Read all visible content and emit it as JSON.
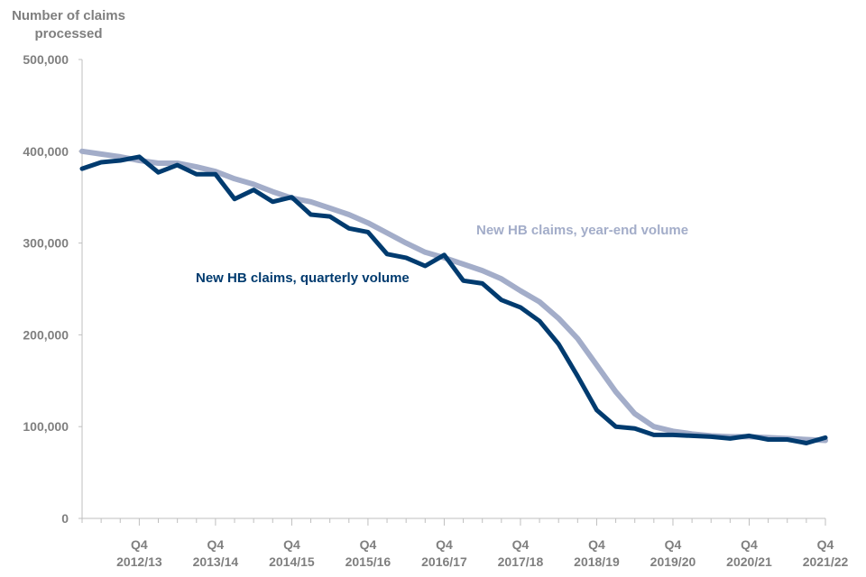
{
  "chart_data": {
    "type": "line",
    "title": "",
    "ylabel_lines": [
      "Number of claims",
      "processed"
    ],
    "xlabel": "",
    "ylim": [
      0,
      500000
    ],
    "yticks": [
      {
        "value": 0,
        "label": "0"
      },
      {
        "value": 100000,
        "label": "100,000"
      },
      {
        "value": 200000,
        "label": "200,000"
      },
      {
        "value": 300000,
        "label": "300,000"
      },
      {
        "value": 400000,
        "label": "400,000"
      },
      {
        "value": 500000,
        "label": "500,000"
      }
    ],
    "grid": false,
    "x_start": "2012/13 Q1",
    "quarters_count": 40,
    "x_tick_labels": [
      {
        "quarter_index": 3,
        "line1": "Q4",
        "line2": "2012/13"
      },
      {
        "quarter_index": 7,
        "line1": "Q4",
        "line2": "2013/14"
      },
      {
        "quarter_index": 11,
        "line1": "Q4",
        "line2": "2014/15"
      },
      {
        "quarter_index": 15,
        "line1": "Q4",
        "line2": "2015/16"
      },
      {
        "quarter_index": 19,
        "line1": "Q4",
        "line2": "2016/17"
      },
      {
        "quarter_index": 23,
        "line1": "Q4",
        "line2": "2017/18"
      },
      {
        "quarter_index": 27,
        "line1": "Q4",
        "line2": "2018/19"
      },
      {
        "quarter_index": 31,
        "line1": "Q4",
        "line2": "2019/20"
      },
      {
        "quarter_index": 35,
        "line1": "Q4",
        "line2": "2020/21"
      },
      {
        "quarter_index": 39,
        "line1": "Q4",
        "line2": "2021/22"
      }
    ],
    "series": [
      {
        "name": "New HB claims, year-end volume",
        "color": "#a3adc9",
        "values": [
          400000,
          397000,
          394000,
          390000,
          387000,
          387000,
          383000,
          378000,
          370000,
          364000,
          356000,
          349000,
          345000,
          338000,
          331000,
          322000,
          311000,
          300000,
          290000,
          284000,
          277000,
          270000,
          261000,
          248000,
          236000,
          218000,
          196000,
          167000,
          138000,
          114000,
          100000,
          95000,
          92000,
          90000,
          89000,
          89000,
          88000,
          87000,
          86000,
          85000
        ]
      },
      {
        "name": "New HB claims, quarterly volume",
        "color": "#003b6f",
        "values": [
          381000,
          388000,
          390000,
          394000,
          377000,
          385000,
          375000,
          375000,
          348000,
          358000,
          345000,
          350000,
          331000,
          329000,
          316000,
          312000,
          288000,
          284000,
          275000,
          287000,
          259000,
          256000,
          238000,
          230000,
          215000,
          190000,
          155000,
          118000,
          100000,
          98000,
          91000,
          91000,
          90000,
          89000,
          87000,
          90000,
          86000,
          86000,
          82000,
          88000
        ]
      }
    ],
    "annotations": [
      {
        "text": "New HB claims, year-end volume",
        "series": 0
      },
      {
        "text": "New HB claims, quarterly volume",
        "series": 1
      }
    ]
  }
}
